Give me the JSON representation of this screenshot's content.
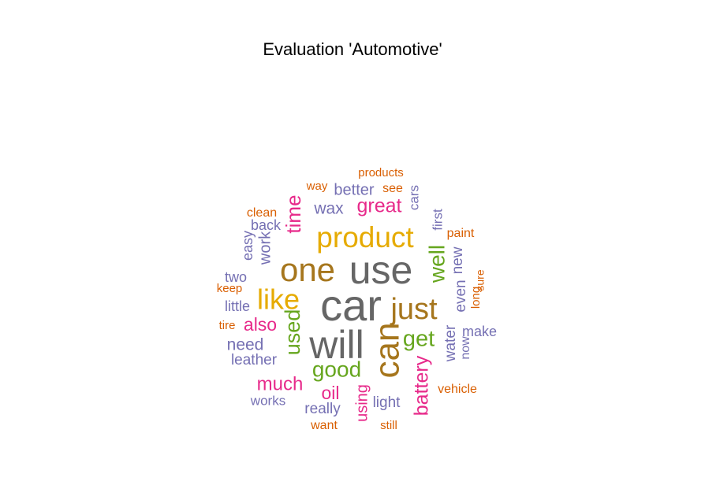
{
  "chart_data": {
    "type": "wordcloud",
    "title": "Evaluation 'Automotive'",
    "colors": {
      "teal": "#1b9e77",
      "orange": "#d95f02",
      "purple": "#7570b3",
      "pink": "#e7298a",
      "green": "#66a61e",
      "yellow": "#e6ab02",
      "brown": "#a6761d",
      "gray": "#666666"
    },
    "words": [
      {
        "text": "car",
        "weight": 10,
        "color": "gray"
      },
      {
        "text": "use",
        "weight": 9.6,
        "color": "gray"
      },
      {
        "text": "will",
        "weight": 9.2,
        "color": "gray"
      },
      {
        "text": "one",
        "weight": 8,
        "color": "brown"
      },
      {
        "text": "can",
        "weight": 8,
        "color": "brown"
      },
      {
        "text": "just",
        "weight": 7.2,
        "color": "brown"
      },
      {
        "text": "product",
        "weight": 7,
        "color": "yellow"
      },
      {
        "text": "like",
        "weight": 6.8,
        "color": "yellow"
      },
      {
        "text": "used",
        "weight": 5.5,
        "color": "green"
      },
      {
        "text": "well",
        "weight": 5.5,
        "color": "green"
      },
      {
        "text": "get",
        "weight": 5.5,
        "color": "green"
      },
      {
        "text": "good",
        "weight": 5.4,
        "color": "green"
      },
      {
        "text": "time",
        "weight": 4.8,
        "color": "pink"
      },
      {
        "text": "great",
        "weight": 4.7,
        "color": "pink"
      },
      {
        "text": "battery",
        "weight": 4.8,
        "color": "pink"
      },
      {
        "text": "much",
        "weight": 4.3,
        "color": "pink"
      },
      {
        "text": "also",
        "weight": 4.2,
        "color": "pink"
      },
      {
        "text": "oil",
        "weight": 4.2,
        "color": "pink"
      },
      {
        "text": "using",
        "weight": 3.6,
        "color": "pink"
      },
      {
        "text": "wax",
        "weight": 3.8,
        "color": "purple"
      },
      {
        "text": "need",
        "weight": 3.8,
        "color": "purple"
      },
      {
        "text": "better",
        "weight": 3.6,
        "color": "purple"
      },
      {
        "text": "work",
        "weight": 3.5,
        "color": "purple"
      },
      {
        "text": "water",
        "weight": 3.4,
        "color": "purple"
      },
      {
        "text": "even",
        "weight": 3.4,
        "color": "purple"
      },
      {
        "text": "new",
        "weight": 3.4,
        "color": "purple"
      },
      {
        "text": "leather",
        "weight": 3.3,
        "color": "purple"
      },
      {
        "text": "really",
        "weight": 3.3,
        "color": "purple"
      },
      {
        "text": "light",
        "weight": 3.3,
        "color": "purple"
      },
      {
        "text": "make",
        "weight": 3.1,
        "color": "purple"
      },
      {
        "text": "back",
        "weight": 3.0,
        "color": "purple"
      },
      {
        "text": "easy",
        "weight": 3.0,
        "color": "purple"
      },
      {
        "text": "two",
        "weight": 3.0,
        "color": "purple"
      },
      {
        "text": "little",
        "weight": 3.0,
        "color": "purple"
      },
      {
        "text": "works",
        "weight": 3.0,
        "color": "purple"
      },
      {
        "text": "cars",
        "weight": 2.8,
        "color": "purple"
      },
      {
        "text": "first",
        "weight": 2.8,
        "color": "purple"
      },
      {
        "text": "now",
        "weight": 2.8,
        "color": "purple"
      },
      {
        "text": "clean",
        "weight": 2.8,
        "color": "orange"
      },
      {
        "text": "see",
        "weight": 2.7,
        "color": "orange"
      },
      {
        "text": "products",
        "weight": 2.6,
        "color": "orange"
      },
      {
        "text": "paint",
        "weight": 2.6,
        "color": "orange"
      },
      {
        "text": "vehicle",
        "weight": 2.6,
        "color": "orange"
      },
      {
        "text": "keep",
        "weight": 2.6,
        "color": "orange"
      },
      {
        "text": "way",
        "weight": 2.6,
        "color": "orange"
      },
      {
        "text": "tire",
        "weight": 2.5,
        "color": "orange"
      },
      {
        "text": "long",
        "weight": 2.5,
        "color": "orange"
      },
      {
        "text": "sure",
        "weight": 2.4,
        "color": "orange"
      },
      {
        "text": "want",
        "weight": 2.6,
        "color": "orange"
      },
      {
        "text": "still",
        "weight": 2.6,
        "color": "orange"
      }
    ]
  }
}
